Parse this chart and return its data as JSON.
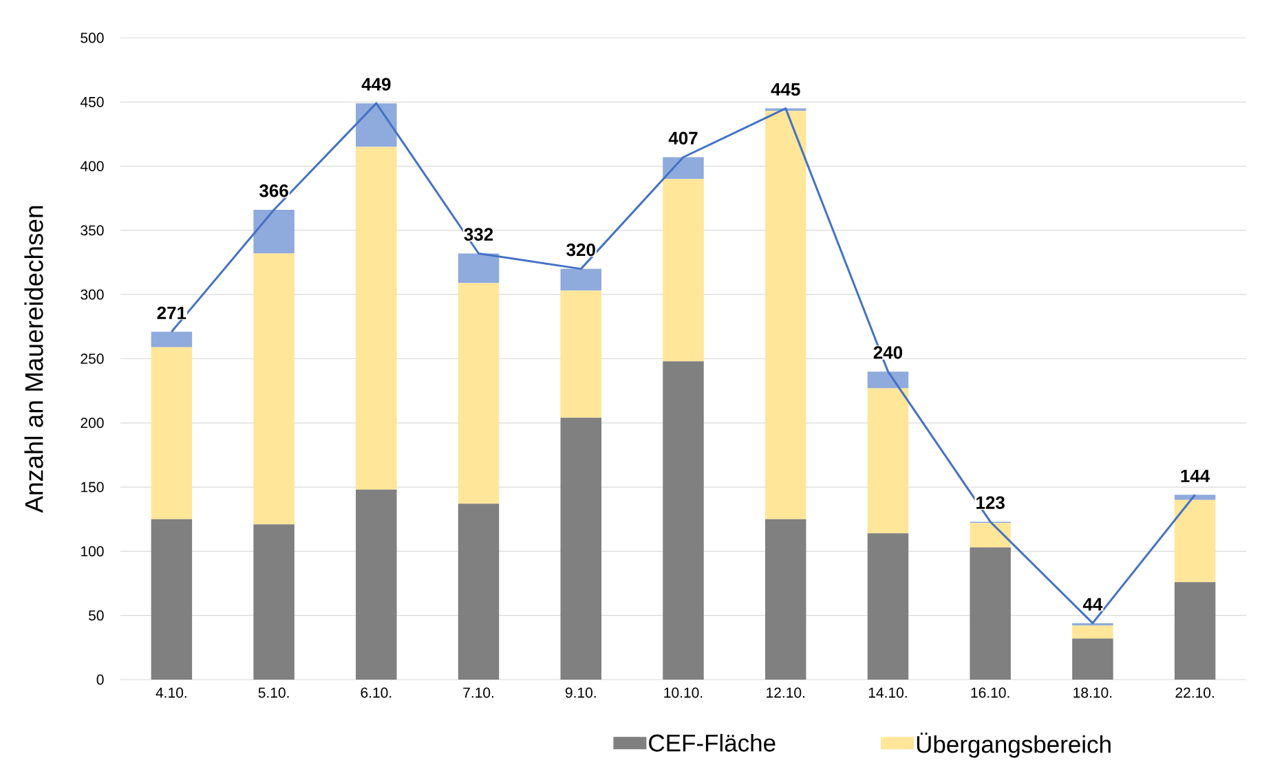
{
  "chart_data": {
    "type": "bar",
    "stacked": true,
    "ylabel": "Anzahl an Mauereidechsen",
    "categories": [
      "4.10.",
      "5.10.",
      "6.10.",
      "7.10.",
      "9.10.",
      "10.10.",
      "12.10.",
      "14.10.",
      "16.10.",
      "18.10.",
      "22.10."
    ],
    "ylim": [
      0,
      500
    ],
    "yticks": [
      0,
      50,
      100,
      150,
      200,
      250,
      300,
      350,
      400,
      450,
      500
    ],
    "grid": "y",
    "legend": "bottom",
    "series": [
      {
        "name": "CEF-Fläche",
        "color": "#808080",
        "values": [
          125,
          121,
          148,
          137,
          204,
          248,
          125,
          114,
          103,
          32,
          76
        ]
      },
      {
        "name": "Übergangsbereich",
        "color": "#ffe699",
        "values": [
          134,
          211,
          267,
          172,
          99,
          142,
          318,
          113,
          19,
          10,
          64
        ]
      },
      {
        "color": "#8faadc",
        "values": [
          12,
          34,
          34,
          23,
          17,
          17,
          2,
          13,
          1,
          2,
          4
        ]
      },
      {
        "type": "line",
        "color": "#4472c4",
        "values": [
          271,
          366,
          449,
          332,
          320,
          407,
          445,
          240,
          123,
          44,
          144
        ],
        "value_labels": [
          "271",
          "366",
          "449",
          "332",
          "320",
          "407",
          "445",
          "240",
          "123",
          "44",
          "144"
        ]
      }
    ]
  }
}
